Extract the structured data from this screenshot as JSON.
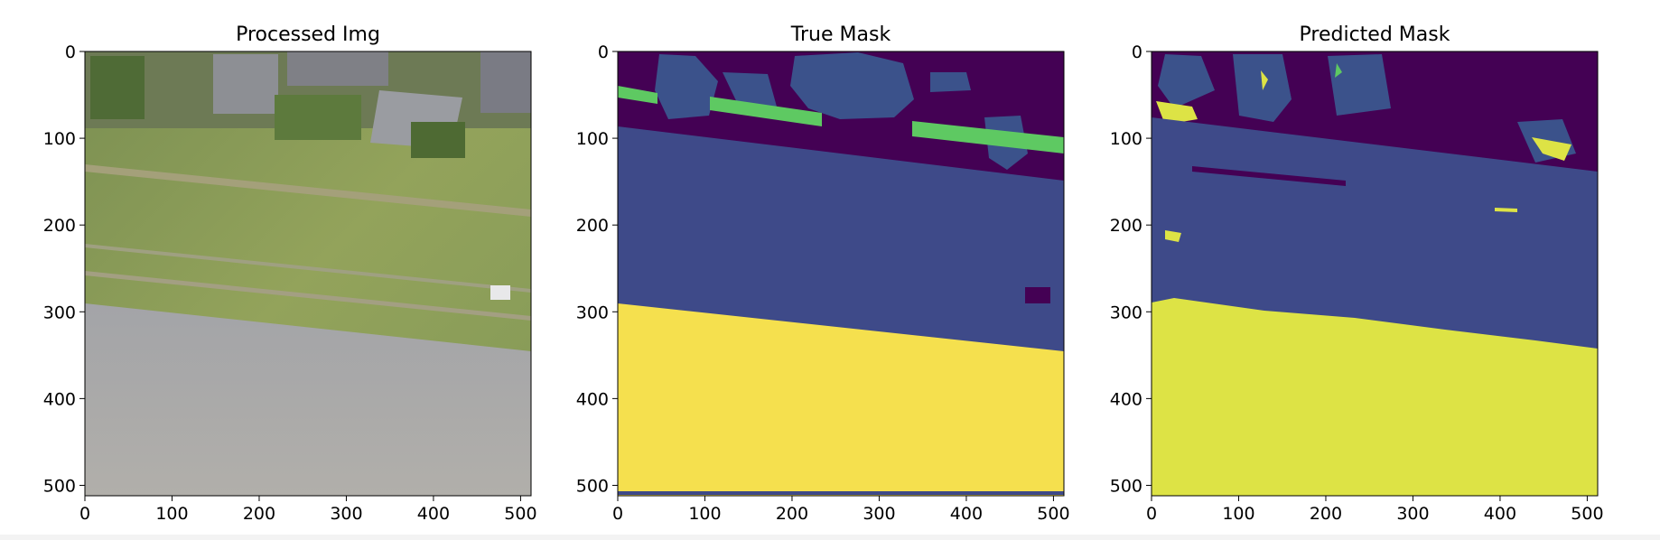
{
  "chart_data": [
    {
      "type": "image",
      "title": "Processed Img",
      "x_ticks": [
        0,
        100,
        200,
        300,
        400,
        500
      ],
      "y_ticks": [
        0,
        100,
        200,
        300,
        400,
        500
      ],
      "xlim": [
        0,
        512
      ],
      "ylim": [
        512,
        0
      ],
      "content": "aerial photo"
    },
    {
      "type": "heatmap",
      "title": "True Mask",
      "x_ticks": [
        0,
        100,
        200,
        300,
        400,
        500
      ],
      "y_ticks": [
        0,
        100,
        200,
        300,
        400,
        500
      ],
      "xlim": [
        0,
        512
      ],
      "ylim": [
        512,
        0
      ],
      "content": "segmentation mask"
    },
    {
      "type": "heatmap",
      "title": "Predicted Mask",
      "x_ticks": [
        0,
        100,
        200,
        300,
        400,
        500
      ],
      "y_ticks": [
        0,
        100,
        200,
        300,
        400,
        500
      ],
      "xlim": [
        0,
        512
      ],
      "ylim": [
        512,
        0
      ],
      "content": "segmentation mask"
    }
  ],
  "colors": {
    "mask_dark": "#440154",
    "mask_building": "#3b528b",
    "mask_ground": "#3e4a89",
    "mask_green": "#5ec962",
    "mask_yellow": "#f5e04e",
    "pred_yellow": "#dde345"
  }
}
